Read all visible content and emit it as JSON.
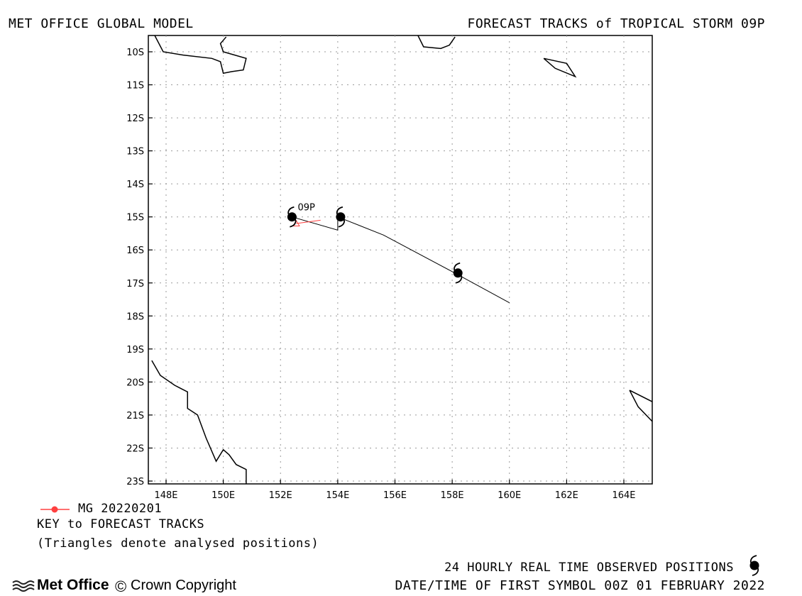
{
  "header": {
    "model_title": "MET OFFICE GLOBAL MODEL",
    "chart_title": "FORECAST TRACKS of TROPICAL STORM 09P"
  },
  "legend": {
    "series_label": "MG 20220201",
    "series_color": "#ff4040",
    "key_title": "KEY to FORECAST TRACKS",
    "key_note": "(Triangles denote analysed positions)"
  },
  "footer": {
    "observed_text": "24 HOURLY REAL TIME OBSERVED POSITIONS",
    "first_symbol_text": "DATE/TIME OF FIRST SYMBOL 00Z 01 FEBRUARY 2022",
    "logo_text": "Met Office",
    "copyright_text": "Crown Copyright",
    "copyright_symbol": "©"
  },
  "chart_data": {
    "type": "line",
    "title": "FORECAST TRACKS of TROPICAL STORM 09P",
    "xlabel": "",
    "ylabel": "",
    "xlim": [
      147.5,
      165
    ],
    "ylim": [
      -23,
      -10
    ],
    "grid": true,
    "x_ticks": [
      148,
      150,
      152,
      154,
      156,
      158,
      160,
      162,
      164
    ],
    "x_tick_labels": [
      "148E",
      "150E",
      "152E",
      "154E",
      "156E",
      "158E",
      "160E",
      "162E",
      "164E"
    ],
    "y_ticks": [
      -10,
      -11,
      -12,
      -13,
      -14,
      -15,
      -16,
      -17,
      -18,
      -19,
      -20,
      -21,
      -22,
      -23
    ],
    "y_tick_labels": [
      "10S",
      "11S",
      "12S",
      "13S",
      "14S",
      "15S",
      "16S",
      "17S",
      "18S",
      "19S",
      "20S",
      "21S",
      "22S",
      "23S"
    ],
    "storm_label": "09P",
    "storm_label_position": [
      152.6,
      -14.8
    ],
    "observed_track": {
      "color": "#000000",
      "points": [
        [
          152.4,
          -15.0
        ],
        [
          154.0,
          -15.4
        ],
        [
          154.0,
          -15.0
        ],
        [
          155.6,
          -15.55
        ],
        [
          158.2,
          -16.75
        ],
        [
          160.0,
          -17.6
        ]
      ]
    },
    "observed_positions": [
      [
        152.4,
        -15.0
      ],
      [
        154.1,
        -15.0
      ],
      [
        158.2,
        -16.7
      ]
    ],
    "forecast_series": [
      {
        "name": "MG 20220201",
        "color": "#ff4040",
        "points": [
          [
            153.4,
            -15.1
          ],
          [
            152.55,
            -15.2
          ]
        ],
        "analysed_position": [
          152.55,
          -15.2
        ]
      }
    ],
    "coastline_color": "#000000",
    "coastlines": [
      [
        [
          147.6,
          -9.5
        ],
        [
          147.9,
          -10.0
        ],
        [
          148.6,
          -10.1
        ],
        [
          149.6,
          -10.2
        ],
        [
          149.9,
          -10.3
        ],
        [
          150.0,
          -10.65
        ],
        [
          150.3,
          -10.6
        ],
        [
          150.7,
          -10.55
        ],
        [
          150.8,
          -10.2
        ],
        [
          150.0,
          -10.0
        ],
        [
          149.9,
          -9.75
        ],
        [
          150.1,
          -9.55
        ]
      ],
      [
        [
          156.8,
          -9.5
        ],
        [
          157.0,
          -9.85
        ],
        [
          157.6,
          -9.9
        ],
        [
          157.9,
          -9.8
        ],
        [
          158.1,
          -9.55
        ]
      ],
      [
        [
          161.2,
          -10.2
        ],
        [
          161.6,
          -10.5
        ],
        [
          162.3,
          -10.75
        ],
        [
          162.0,
          -10.35
        ],
        [
          161.2,
          -10.2
        ]
      ],
      [
        [
          147.5,
          -19.35
        ],
        [
          147.8,
          -19.8
        ],
        [
          148.3,
          -20.1
        ],
        [
          148.75,
          -20.3
        ],
        [
          148.75,
          -20.8
        ],
        [
          149.1,
          -21.0
        ],
        [
          149.4,
          -21.7
        ],
        [
          149.75,
          -22.4
        ],
        [
          150.0,
          -22.05
        ],
        [
          150.2,
          -22.2
        ],
        [
          150.45,
          -22.5
        ],
        [
          150.8,
          -22.65
        ],
        [
          150.8,
          -23.1
        ]
      ],
      [
        [
          164.2,
          -20.25
        ],
        [
          164.5,
          -20.75
        ],
        [
          165.0,
          -21.2
        ]
      ],
      [
        [
          164.2,
          -20.25
        ],
        [
          165.0,
          -20.6
        ]
      ]
    ]
  }
}
